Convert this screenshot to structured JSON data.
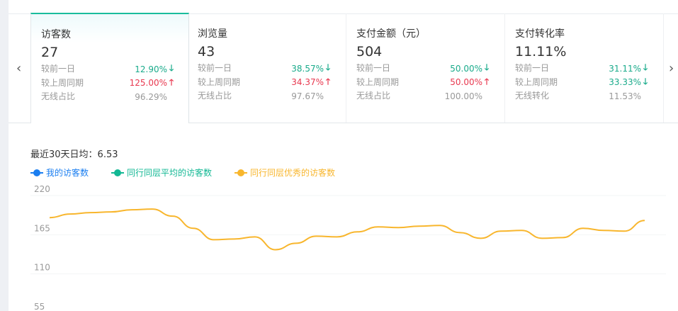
{
  "nav": {
    "prev": "‹",
    "next": "›"
  },
  "cards": [
    {
      "title": "访客数",
      "value": "27",
      "rows": [
        {
          "label": "较前一日",
          "value": "12.90%",
          "trend": "down"
        },
        {
          "label": "较上周同期",
          "value": "125.00%",
          "trend": "up"
        },
        {
          "label": "无线占比",
          "value": "96.29%",
          "trend": ""
        }
      ]
    },
    {
      "title": "浏览量",
      "value": "43",
      "rows": [
        {
          "label": "较前一日",
          "value": "38.57%",
          "trend": "down"
        },
        {
          "label": "较上周同期",
          "value": "34.37%",
          "trend": "up"
        },
        {
          "label": "无线占比",
          "value": "97.67%",
          "trend": ""
        }
      ]
    },
    {
      "title": "支付金额（元）",
      "value": "504",
      "rows": [
        {
          "label": "较前一日",
          "value": "50.00%",
          "trend": "down"
        },
        {
          "label": "较上周同期",
          "value": "50.00%",
          "trend": "up"
        },
        {
          "label": "无线占比",
          "value": "100.00%",
          "trend": ""
        }
      ]
    },
    {
      "title": "支付转化率",
      "value": "11.11%",
      "rows": [
        {
          "label": "较前一日",
          "value": "31.11%",
          "trend": "down"
        },
        {
          "label": "较上周同期",
          "value": "33.33%",
          "trend": "down"
        },
        {
          "label": "无线转化",
          "value": "11.53%",
          "trend": ""
        }
      ]
    }
  ],
  "colors": {
    "up": "#e8384f",
    "down": "#1aab8b",
    "accent": "#1abc9c"
  },
  "chart_data": {
    "type": "line",
    "avg_label": "最近30天日均：6.53",
    "legend": [
      {
        "name": "我的访客数",
        "color": "#1a7ef0"
      },
      {
        "name": "同行同层平均的访客数",
        "color": "#13b894"
      },
      {
        "name": "同行同层优秀的访客数",
        "color": "#f8b62d"
      }
    ],
    "yticks": [
      220,
      165,
      110,
      55
    ],
    "ylim": [
      55,
      220
    ],
    "grid": true,
    "series": [
      {
        "name": "同行同层优秀的访客数",
        "color": "#f8b62d",
        "values": [
          189,
          194,
          196,
          197,
          200,
          201,
          191,
          174,
          158,
          159,
          162,
          144,
          153,
          163,
          162,
          169,
          176,
          175,
          177,
          178,
          168,
          160,
          170,
          171,
          160,
          161,
          174,
          171,
          170,
          185
        ]
      }
    ]
  }
}
